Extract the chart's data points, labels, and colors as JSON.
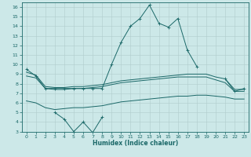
{
  "x": [
    0,
    1,
    2,
    3,
    4,
    5,
    6,
    7,
    8,
    9,
    10,
    11,
    12,
    13,
    14,
    15,
    16,
    17,
    18,
    19,
    20,
    21,
    22,
    23
  ],
  "line_main": [
    9.5,
    8.8,
    7.5,
    7.5,
    7.5,
    7.5,
    7.5,
    7.5,
    7.5,
    10.0,
    12.3,
    14.0,
    14.8,
    16.2,
    14.3,
    13.9,
    14.8,
    11.5,
    9.8,
    null,
    null,
    8.5,
    7.2,
    7.5
  ],
  "line_upper": [
    9.2,
    8.9,
    7.7,
    7.6,
    7.6,
    7.7,
    7.7,
    7.8,
    7.9,
    8.1,
    8.3,
    8.4,
    8.5,
    8.6,
    8.7,
    8.8,
    8.9,
    9.0,
    9.0,
    9.0,
    8.7,
    8.5,
    7.4,
    7.4
  ],
  "line_mid": [
    8.8,
    8.6,
    7.5,
    7.4,
    7.4,
    7.5,
    7.5,
    7.6,
    7.7,
    7.9,
    8.1,
    8.2,
    8.3,
    8.4,
    8.5,
    8.6,
    8.7,
    8.7,
    8.7,
    8.7,
    8.4,
    8.1,
    7.2,
    7.2
  ],
  "line_lower_env": [
    6.2,
    6.0,
    5.5,
    5.3,
    5.4,
    5.5,
    5.5,
    5.6,
    5.7,
    5.9,
    6.1,
    6.2,
    6.3,
    6.4,
    6.5,
    6.6,
    6.7,
    6.7,
    6.8,
    6.8,
    6.7,
    6.6,
    6.4,
    6.4
  ],
  "line_bottom": [
    null,
    null,
    null,
    5.0,
    4.3,
    3.0,
    4.0,
    2.9,
    4.5,
    null,
    null,
    null,
    null,
    null,
    null,
    null,
    null,
    null,
    null,
    null,
    null,
    null,
    null,
    null
  ],
  "bg_color": "#cce8e8",
  "line_color": "#1a6868",
  "grid_color": "#b0cccc",
  "xlabel": "Humidex (Indice chaleur)",
  "ylim": [
    3,
    16.5
  ],
  "xlim": [
    -0.5,
    23.5
  ],
  "yticks": [
    3,
    4,
    5,
    6,
    7,
    8,
    9,
    10,
    11,
    12,
    13,
    14,
    15,
    16
  ],
  "xticks": [
    0,
    1,
    2,
    3,
    4,
    5,
    6,
    7,
    8,
    9,
    10,
    11,
    12,
    13,
    14,
    15,
    16,
    17,
    18,
    19,
    20,
    21,
    22,
    23
  ]
}
